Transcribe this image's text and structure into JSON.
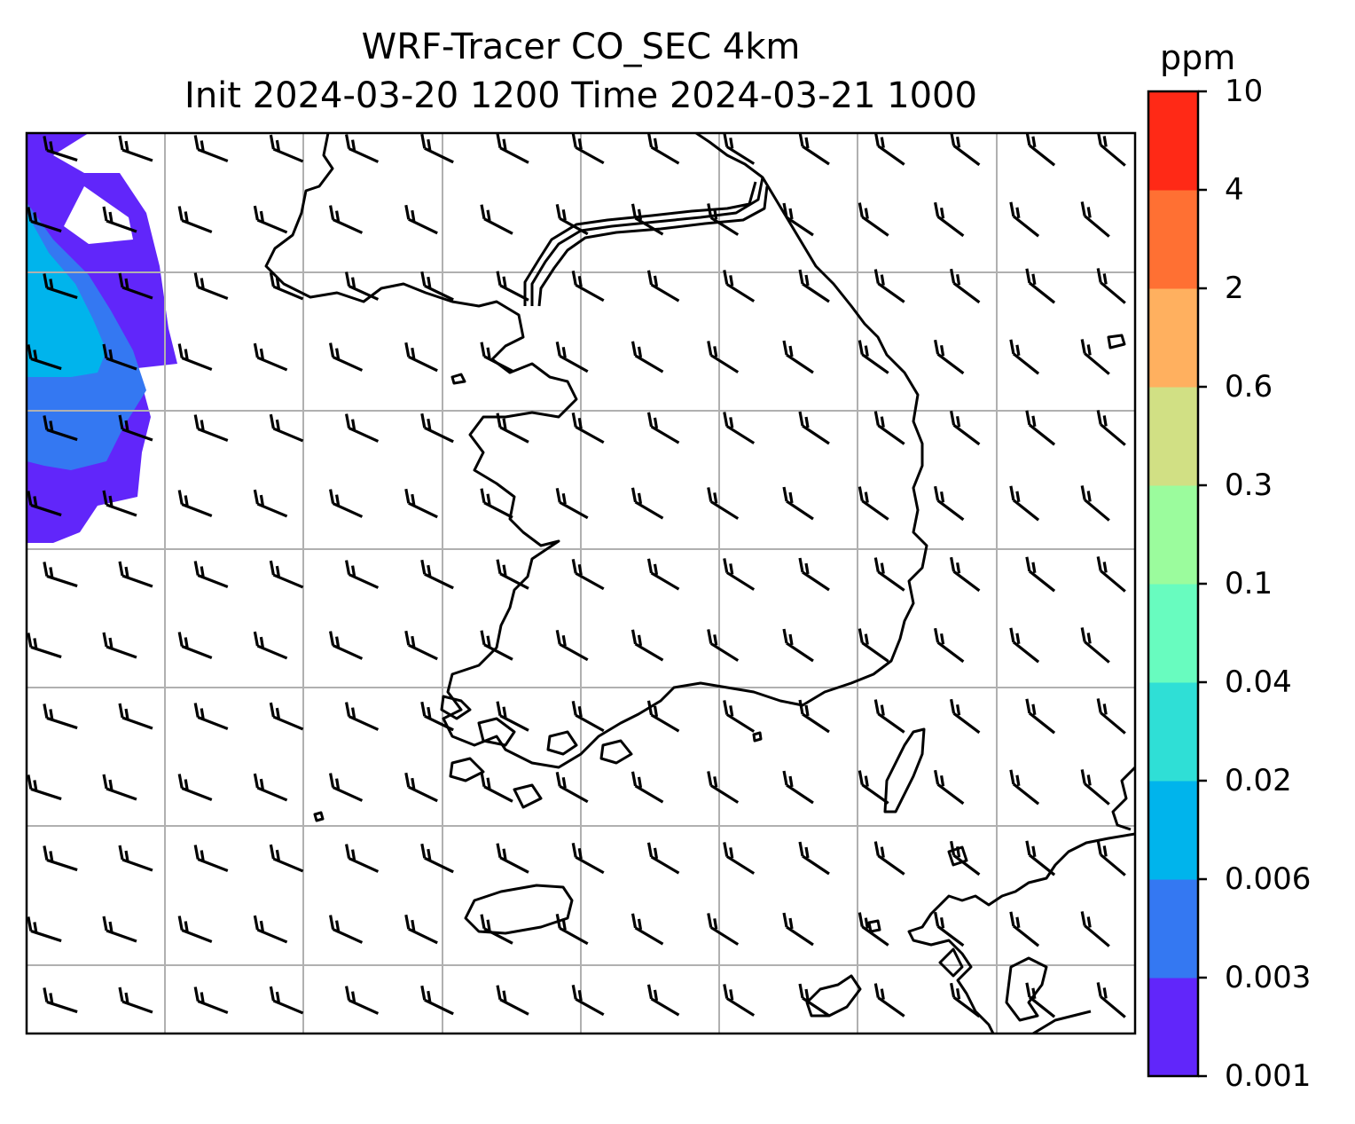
{
  "title_line1": "WRF-Tracer CO_SEC 4km",
  "title_line2": "Init 2024-03-20 1200 Time 2024-03-21 1000",
  "colorbar": {
    "label": "ppm",
    "ticks": [
      "0.001",
      "0.003",
      "0.006",
      "0.02",
      "0.04",
      "0.1",
      "0.3",
      "0.6",
      "2",
      "4",
      "10"
    ],
    "colors": [
      "#6126fa",
      "#3478f2",
      "#00b4ec",
      "#2fdfd6",
      "#68fcbf",
      "#9bfc9d",
      "#d1e084",
      "#ffb05f",
      "#ff7033",
      "#ff2916"
    ]
  },
  "map": {
    "wind_barbs": true,
    "gridlines": true,
    "coastline_color": "#000000",
    "gridline_color": "#b0b0b0"
  }
}
